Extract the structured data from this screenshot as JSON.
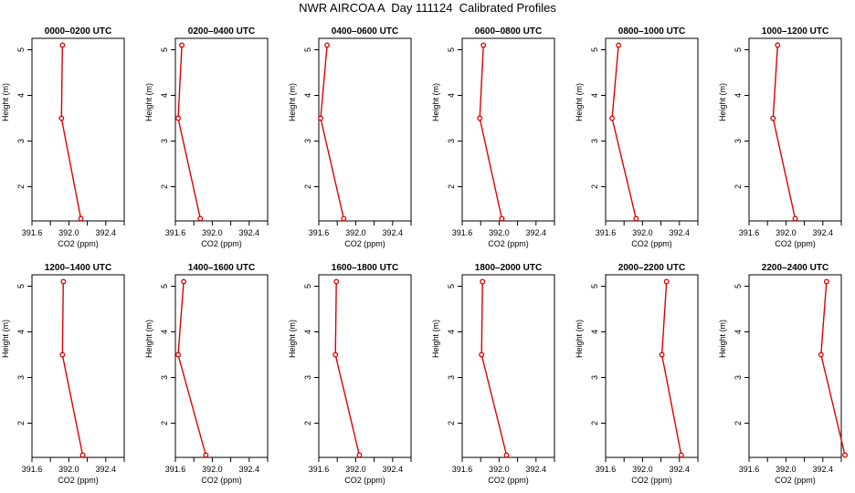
{
  "page_title": "NWR AIRCOA A  Day 111124  Calibrated Profiles",
  "colors": {
    "profile": "#dd0000",
    "axes": "#000000",
    "background": "#ffffff"
  },
  "chart_data": [
    {
      "type": "line",
      "title": "0000–0200 UTC",
      "xlabel": "CO2 (ppm)",
      "ylabel": "Height (m)",
      "x_ticks": [
        "391.6",
        "392.0",
        "392.4"
      ],
      "y_ticks": [
        "2",
        "3",
        "4",
        "5"
      ],
      "xlim": [
        391.6,
        392.6
      ],
      "ylim": [
        1.25,
        5.25
      ],
      "series": [
        {
          "x": [
            392.13,
            391.92,
            391.93
          ],
          "y": [
            1.3,
            3.5,
            5.1
          ]
        }
      ]
    },
    {
      "type": "line",
      "title": "0200–0400 UTC",
      "xlabel": "CO2 (ppm)",
      "ylabel": "Height (m)",
      "x_ticks": [
        "391.6",
        "392.0",
        "392.4"
      ],
      "y_ticks": [
        "2",
        "3",
        "4",
        "5"
      ],
      "xlim": [
        391.6,
        392.6
      ],
      "ylim": [
        1.25,
        5.25
      ],
      "series": [
        {
          "x": [
            391.87,
            391.63,
            391.67
          ],
          "y": [
            1.3,
            3.5,
            5.1
          ]
        }
      ]
    },
    {
      "type": "line",
      "title": "0400–0600 UTC",
      "xlabel": "CO2 (ppm)",
      "ylabel": "Height (m)",
      "x_ticks": [
        "391.6",
        "392.0",
        "392.4"
      ],
      "y_ticks": [
        "2",
        "3",
        "4",
        "5"
      ],
      "xlim": [
        391.6,
        392.6
      ],
      "ylim": [
        1.25,
        5.25
      ],
      "series": [
        {
          "x": [
            391.87,
            391.62,
            391.69
          ],
          "y": [
            1.3,
            3.5,
            5.1
          ]
        }
      ]
    },
    {
      "type": "line",
      "title": "0600–0800 UTC",
      "xlabel": "CO2 (ppm)",
      "ylabel": "Height (m)",
      "x_ticks": [
        "391.6",
        "392.0",
        "392.4"
      ],
      "y_ticks": [
        "2",
        "3",
        "4",
        "5"
      ],
      "xlim": [
        391.6,
        392.6
      ],
      "ylim": [
        1.25,
        5.25
      ],
      "series": [
        {
          "x": [
            392.03,
            391.79,
            391.83
          ],
          "y": [
            1.3,
            3.5,
            5.1
          ]
        }
      ]
    },
    {
      "type": "line",
      "title": "0800–1000 UTC",
      "xlabel": "CO2 (ppm)",
      "ylabel": "Height (m)",
      "x_ticks": [
        "391.6",
        "392.0",
        "392.4"
      ],
      "y_ticks": [
        "2",
        "3",
        "4",
        "5"
      ],
      "xlim": [
        391.6,
        392.6
      ],
      "ylim": [
        1.25,
        5.25
      ],
      "series": [
        {
          "x": [
            391.93,
            391.67,
            391.74
          ],
          "y": [
            1.3,
            3.5,
            5.1
          ]
        }
      ]
    },
    {
      "type": "line",
      "title": "1000–1200 UTC",
      "xlabel": "CO2 (ppm)",
      "ylabel": "Height (m)",
      "x_ticks": [
        "391.6",
        "392.0",
        "392.4"
      ],
      "y_ticks": [
        "2",
        "3",
        "4",
        "5"
      ],
      "xlim": [
        391.6,
        392.6
      ],
      "ylim": [
        1.25,
        5.25
      ],
      "series": [
        {
          "x": [
            392.1,
            391.86,
            391.91
          ],
          "y": [
            1.3,
            3.5,
            5.1
          ]
        }
      ]
    },
    {
      "type": "line",
      "title": "1200–1400 UTC",
      "xlabel": "CO2 (ppm)",
      "ylabel": "Height (m)",
      "x_ticks": [
        "391.6",
        "392.0",
        "392.4"
      ],
      "y_ticks": [
        "2",
        "3",
        "4",
        "5"
      ],
      "xlim": [
        391.6,
        392.6
      ],
      "ylim": [
        1.25,
        5.25
      ],
      "series": [
        {
          "x": [
            392.15,
            391.93,
            391.94
          ],
          "y": [
            1.3,
            3.5,
            5.1
          ]
        }
      ]
    },
    {
      "type": "line",
      "title": "1400–1600 UTC",
      "xlabel": "CO2 (ppm)",
      "ylabel": "Height (m)",
      "x_ticks": [
        "391.6",
        "392.0",
        "392.4"
      ],
      "y_ticks": [
        "2",
        "3",
        "4",
        "5"
      ],
      "xlim": [
        391.6,
        392.6
      ],
      "ylim": [
        1.25,
        5.25
      ],
      "series": [
        {
          "x": [
            391.93,
            391.63,
            391.69
          ],
          "y": [
            1.3,
            3.5,
            5.1
          ]
        }
      ]
    },
    {
      "type": "line",
      "title": "1600–1800 UTC",
      "xlabel": "CO2 (ppm)",
      "ylabel": "Height (m)",
      "x_ticks": [
        "391.6",
        "392.0",
        "392.4"
      ],
      "y_ticks": [
        "2",
        "3",
        "4",
        "5"
      ],
      "xlim": [
        391.6,
        392.6
      ],
      "ylim": [
        1.25,
        5.25
      ],
      "series": [
        {
          "x": [
            392.04,
            391.78,
            391.79
          ],
          "y": [
            1.3,
            3.5,
            5.1
          ]
        }
      ]
    },
    {
      "type": "line",
      "title": "1800–2000 UTC",
      "xlabel": "CO2 (ppm)",
      "ylabel": "Height (m)",
      "x_ticks": [
        "391.6",
        "392.0",
        "392.4"
      ],
      "y_ticks": [
        "2",
        "3",
        "4",
        "5"
      ],
      "xlim": [
        391.6,
        392.6
      ],
      "ylim": [
        1.25,
        5.25
      ],
      "series": [
        {
          "x": [
            392.08,
            391.81,
            391.82
          ],
          "y": [
            1.3,
            3.5,
            5.1
          ]
        }
      ]
    },
    {
      "type": "line",
      "title": "2000–2200 UTC",
      "xlabel": "CO2 (ppm)",
      "ylabel": "Height (m)",
      "x_ticks": [
        "391.6",
        "392.0",
        "392.4"
      ],
      "y_ticks": [
        "2",
        "3",
        "4",
        "5"
      ],
      "xlim": [
        391.6,
        392.6
      ],
      "ylim": [
        1.25,
        5.25
      ],
      "series": [
        {
          "x": [
            392.42,
            392.21,
            392.26
          ],
          "y": [
            1.3,
            3.5,
            5.1
          ]
        }
      ]
    },
    {
      "type": "line",
      "title": "2200–2400 UTC",
      "xlabel": "CO2 (ppm)",
      "ylabel": "Height (m)",
      "x_ticks": [
        "391.6",
        "392.0",
        "392.4"
      ],
      "y_ticks": [
        "2",
        "3",
        "4",
        "5"
      ],
      "xlim": [
        391.6,
        392.6
      ],
      "ylim": [
        1.25,
        5.25
      ],
      "series": [
        {
          "x": [
            392.64,
            392.38,
            392.44
          ],
          "y": [
            1.3,
            3.5,
            5.1
          ]
        }
      ]
    }
  ]
}
